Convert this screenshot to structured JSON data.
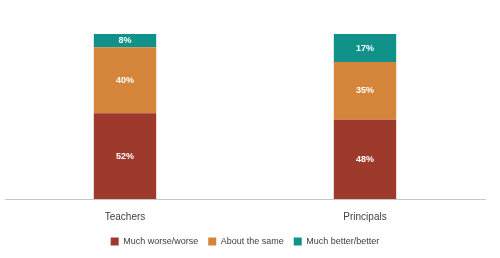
{
  "chart_data": {
    "type": "bar",
    "stacked": true,
    "data_labels": true,
    "legend": "bottom",
    "tick_labels": "x",
    "grid": false,
    "categories": [
      "Teachers",
      "Principals"
    ],
    "ylim": [
      0,
      100
    ],
    "series": [
      {
        "name": "Much worse/worse",
        "color": "#9e3a2b",
        "values": [
          52,
          48
        ],
        "value_labels": [
          "52%",
          "48%"
        ]
      },
      {
        "name": "About the same",
        "color": "#d4853a",
        "values": [
          40,
          35
        ],
        "value_labels": [
          "40%",
          "35%"
        ]
      },
      {
        "name": "Much better/better",
        "color": "#10918a",
        "values": [
          8,
          17
        ],
        "value_labels": [
          "8%",
          "17%"
        ]
      }
    ]
  }
}
